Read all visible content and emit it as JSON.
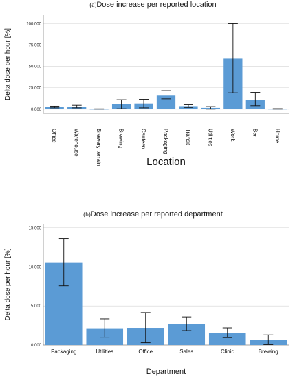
{
  "chart_data": [
    {
      "type": "bar",
      "title": "Dose increase per reported location",
      "title_prefix": "(a)",
      "xlabel": "Location",
      "ylabel": "Delta dose per hour [%]",
      "categories": [
        "Office",
        "Warehouse",
        "Brewery terrain",
        "Brewing",
        "Canteen",
        "Packaging",
        "Transit",
        "Utilities",
        "Work",
        "Bar",
        "Home"
      ],
      "values": [
        2.5,
        3.0,
        0.2,
        5.5,
        6.5,
        16.5,
        3.5,
        1.5,
        59.0,
        11.0,
        0.3
      ],
      "error_low": [
        1.5,
        1.5,
        0.0,
        0.5,
        1.5,
        12.0,
        2.0,
        0.0,
        19.0,
        4.0,
        0.0
      ],
      "error_high": [
        3.5,
        4.5,
        0.4,
        11.0,
        11.5,
        21.5,
        5.0,
        3.0,
        100.0,
        19.5,
        0.6
      ],
      "yticks": [
        "0.000",
        "25.000",
        "50.000",
        "75.000",
        "100.000"
      ],
      "ytick_values": [
        0,
        25,
        50,
        75,
        100
      ],
      "ylim": [
        -5,
        110
      ],
      "grid": true,
      "bar_color": "#5b9bd5"
    },
    {
      "type": "bar",
      "title": "Dose increase per reported department",
      "title_prefix": "(b)",
      "xlabel": "Department",
      "ylabel": "Delta dose per hour [%]",
      "categories": [
        "Packaging",
        "Utilities",
        "Office",
        "Sales",
        "Clinic",
        "Brewing"
      ],
      "values": [
        10.6,
        2.15,
        2.2,
        2.7,
        1.55,
        0.65
      ],
      "error_low": [
        7.6,
        1.0,
        0.3,
        1.85,
        0.95,
        0.05
      ],
      "error_high": [
        13.6,
        3.35,
        4.15,
        3.6,
        2.2,
        1.3
      ],
      "yticks": [
        "0.000",
        "5.000",
        "10.000",
        "15.000"
      ],
      "ytick_values": [
        0,
        5,
        10,
        15
      ],
      "ylim": [
        0,
        15.5
      ],
      "grid": true,
      "bar_color": "#5b9bd5"
    }
  ]
}
